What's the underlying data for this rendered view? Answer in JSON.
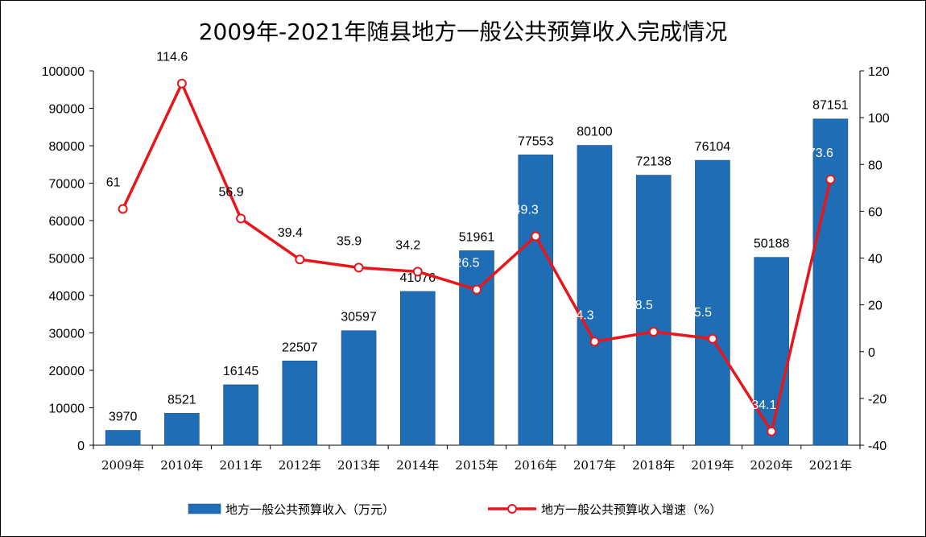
{
  "chart_data": {
    "type": "bar",
    "title": "2009年-2021年随县地方一般公共预算收入完成情况",
    "categories": [
      "2009年",
      "2010年",
      "2011年",
      "2012年",
      "2013年",
      "2014年",
      "2015年",
      "2016年",
      "2017年",
      "2018年",
      "2019年",
      "2020年",
      "2021年"
    ],
    "series": [
      {
        "name": "地方一般公共预算收入（万元）",
        "type": "bar",
        "axis": "left",
        "color": "#1F6EB5",
        "values": [
          3970,
          8521,
          16145,
          22507,
          30597,
          41076,
          51961,
          77553,
          80100,
          72138,
          76104,
          50188,
          87151
        ]
      },
      {
        "name": "地方一般公共预算收入增速（%）",
        "type": "line",
        "axis": "right",
        "color": "#E8161B",
        "values": [
          61,
          114.6,
          56.9,
          39.4,
          35.9,
          34.2,
          26.5,
          49.3,
          4.3,
          8.5,
          5.5,
          -34.1,
          73.6
        ]
      }
    ],
    "y_left": {
      "min": 0,
      "max": 100000,
      "ticks": [
        0,
        10000,
        20000,
        30000,
        40000,
        50000,
        60000,
        70000,
        80000,
        90000,
        100000
      ]
    },
    "y_right": {
      "min": -40,
      "max": 120,
      "ticks": [
        -40,
        -20,
        0,
        20,
        40,
        60,
        80,
        100,
        120
      ]
    },
    "grid": false,
    "legend_position": "bottom"
  }
}
